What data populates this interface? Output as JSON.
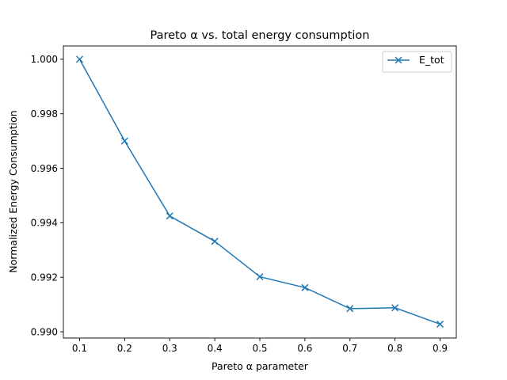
{
  "chart_data": {
    "type": "line",
    "title": "Pareto α vs. total energy consumption",
    "xlabel": "Pareto α parameter",
    "ylabel": "Normalized Energy Consumption",
    "x": [
      0.1,
      0.2,
      0.3,
      0.4,
      0.5,
      0.6,
      0.7,
      0.8,
      0.9
    ],
    "series": [
      {
        "name": "E_tot",
        "marker": "x",
        "color": "#1f77b4",
        "values": [
          1.0,
          0.997,
          0.99425,
          0.99332,
          0.99202,
          0.99162,
          0.99085,
          0.99088,
          0.99028
        ]
      }
    ],
    "xlim": [
      0.064,
      0.936
    ],
    "ylim": [
      0.98977,
      1.00049
    ],
    "xticks": [
      "0.1",
      "0.2",
      "0.3",
      "0.4",
      "0.5",
      "0.6",
      "0.7",
      "0.8",
      "0.9"
    ],
    "yticks": [
      "0.990",
      "0.992",
      "0.994",
      "0.996",
      "0.998",
      "1.000"
    ],
    "grid": false,
    "legend_position": "top-right"
  }
}
